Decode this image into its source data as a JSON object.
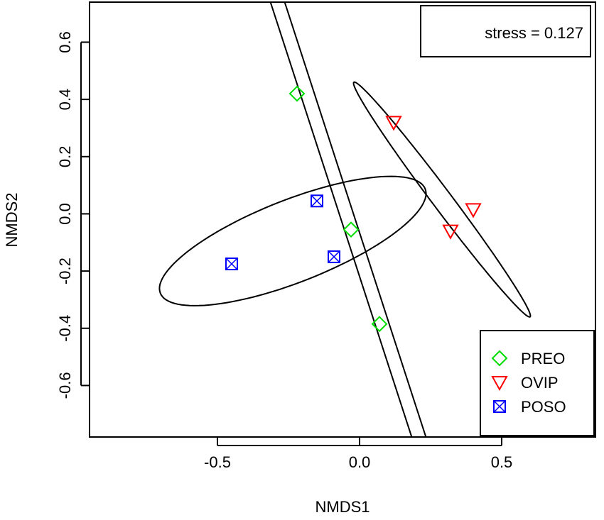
{
  "chart_data": {
    "type": "scatter",
    "title": "",
    "xlabel": "NMDS1",
    "ylabel": "NMDS2",
    "xlim": [
      -0.95,
      0.83
    ],
    "ylim": [
      -0.78,
      0.74
    ],
    "x_ticks": [
      -0.5,
      0.0,
      0.5
    ],
    "x_tick_labels": [
      "-0.5",
      "0.0",
      "0.5"
    ],
    "y_ticks": [
      -0.6,
      -0.4,
      -0.2,
      0.0,
      0.2,
      0.4,
      0.6
    ],
    "y_tick_labels": [
      "-0.6",
      "-0.4",
      "-0.2",
      "0.0",
      "0.2",
      "0.4",
      "0.6"
    ],
    "grid": false,
    "annotation": "stress = 0.127",
    "legend_position": "bottom-right",
    "series": [
      {
        "name": "PREO",
        "color": "#00dd00",
        "marker": "diamond",
        "points": [
          [
            -0.22,
            0.42
          ],
          [
            -0.03,
            -0.055
          ],
          [
            0.07,
            -0.385
          ]
        ]
      },
      {
        "name": "OVIP",
        "color": "#ff0000",
        "marker": "triangle-down",
        "points": [
          [
            0.12,
            0.32
          ],
          [
            0.32,
            -0.06
          ],
          [
            0.4,
            0.015
          ]
        ]
      },
      {
        "name": "POSO",
        "color": "#0000ff",
        "marker": "square-x",
        "points": [
          [
            -0.45,
            -0.175
          ],
          [
            -0.15,
            0.045
          ],
          [
            -0.09,
            -0.15
          ]
        ]
      }
    ],
    "ellipses": [
      {
        "group": "PREO",
        "color": "#000000",
        "band": [
          [
            -0.32,
            0.76
          ],
          [
            -0.27,
            0.76
          ],
          [
            0.24,
            -0.8
          ],
          [
            0.19,
            -0.8
          ]
        ]
      },
      {
        "group": "OVIP",
        "color": "#000000",
        "center": [
          0.29,
          0.05
        ],
        "semi_axes_vectors": [
          [
            0.31,
            -0.41
          ],
          [
            -0.027,
            -0.021
          ]
        ]
      },
      {
        "group": "POSO",
        "color": "#000000",
        "center": [
          -0.235,
          -0.095
        ],
        "semi_axes_vectors": [
          [
            0.466,
            0.182
          ],
          [
            -0.052,
            0.134
          ]
        ]
      }
    ]
  }
}
